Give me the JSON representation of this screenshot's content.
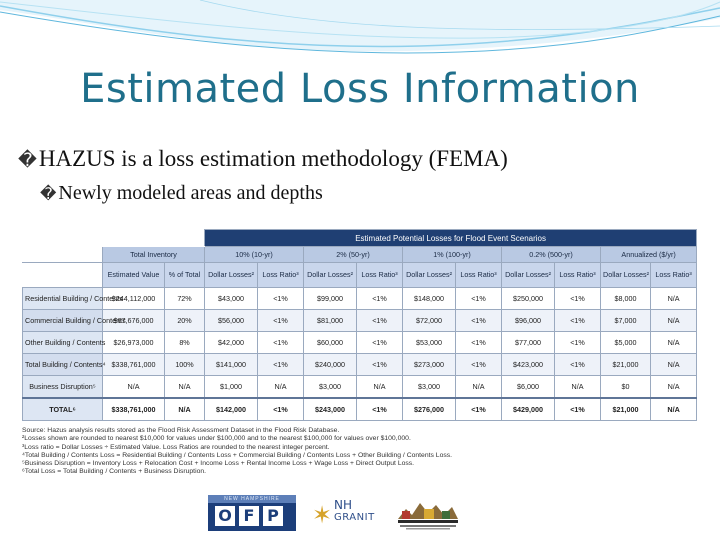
{
  "slide": {
    "title": "Estimated Loss Information",
    "bullet_glyph": "�",
    "bullets": [
      "HAZUS is a loss estimation methodology (FEMA)",
      "Newly modeled areas and depths"
    ]
  },
  "table": {
    "main_header": "Estimated Potential Losses for Flood Event Scenarios",
    "groups": [
      "Total Inventory",
      "10% (10-yr)",
      "2% (50-yr)",
      "1% (100-yr)",
      "0.2% (500-yr)",
      "Annualized ($/yr)"
    ],
    "col_labels": [
      "Estimated Value",
      "% of Total",
      "Dollar Losses²",
      "Loss Ratio³",
      "Dollar Losses²",
      "Loss Ratio³",
      "Dollar Losses²",
      "Loss Ratio³",
      "Dollar Losses²",
      "Loss Ratio³",
      "Dollar Losses²",
      "Loss Ratio³"
    ],
    "rows": [
      {
        "label": "Residential Building / Contents",
        "cells": [
          "$244,112,000",
          "72%",
          "$43,000",
          "<1%",
          "$99,000",
          "<1%",
          "$148,000",
          "<1%",
          "$250,000",
          "<1%",
          "$8,000",
          "N/A"
        ]
      },
      {
        "label": "Commercial Building / Contents",
        "cells": [
          "$67,676,000",
          "20%",
          "$56,000",
          "<1%",
          "$81,000",
          "<1%",
          "$72,000",
          "<1%",
          "$96,000",
          "<1%",
          "$7,000",
          "N/A"
        ]
      },
      {
        "label": "Other Building / Contents",
        "cells": [
          "$26,973,000",
          "8%",
          "$42,000",
          "<1%",
          "$60,000",
          "<1%",
          "$53,000",
          "<1%",
          "$77,000",
          "<1%",
          "$5,000",
          "N/A"
        ]
      },
      {
        "label": "Total Building / Contents⁴",
        "cells": [
          "$338,761,000",
          "100%",
          "$141,000",
          "<1%",
          "$240,000",
          "<1%",
          "$273,000",
          "<1%",
          "$423,000",
          "<1%",
          "$21,000",
          "N/A"
        ]
      },
      {
        "label": "Business Disruption⁵",
        "cells": [
          "N/A",
          "N/A",
          "$1,000",
          "N/A",
          "$3,000",
          "N/A",
          "$3,000",
          "N/A",
          "$6,000",
          "N/A",
          "$0",
          "N/A"
        ]
      }
    ],
    "total_row": {
      "label": "TOTAL⁶",
      "cells": [
        "$338,761,000",
        "N/A",
        "$142,000",
        "<1%",
        "$243,000",
        "<1%",
        "$276,000",
        "<1%",
        "$429,000",
        "<1%",
        "$21,000",
        "N/A"
      ]
    },
    "notes": [
      "Source: Hazus analysis results stored as the Flood Risk Assessment Dataset in the Flood Risk Database.",
      "²Losses shown are rounded to nearest $10,000 for values under $100,000 and to the nearest $100,000 for values over $100,000.",
      "³Loss ratio = Dollar Losses ÷ Estimated Value. Loss Ratios are rounded to the nearest integer percent.",
      "⁴Total Building / Contents Loss = Residential Building / Contents Loss + Commercial Building / Contents Loss + Other Building / Contents Loss.",
      "⁵Business Disruption = Inventory Loss + Relocation Cost + Income Loss + Rental Income Loss + Wage Loss + Direct Output Loss.",
      "⁶Total Loss = Total Building / Contents + Business Disruption."
    ]
  },
  "logos": {
    "ofp_band": "NEW HAMPSHIRE",
    "ofp_letters": [
      "O",
      "F",
      "P"
    ],
    "nh_line1": "NH",
    "nh_line2": "GRANIT",
    "star_glyph": "✶"
  },
  "colors": {
    "title": "#1f6f8b",
    "table_header": "#1f3f73",
    "table_subheader": "#b9c9e3",
    "wave": "#7fc6e6"
  }
}
